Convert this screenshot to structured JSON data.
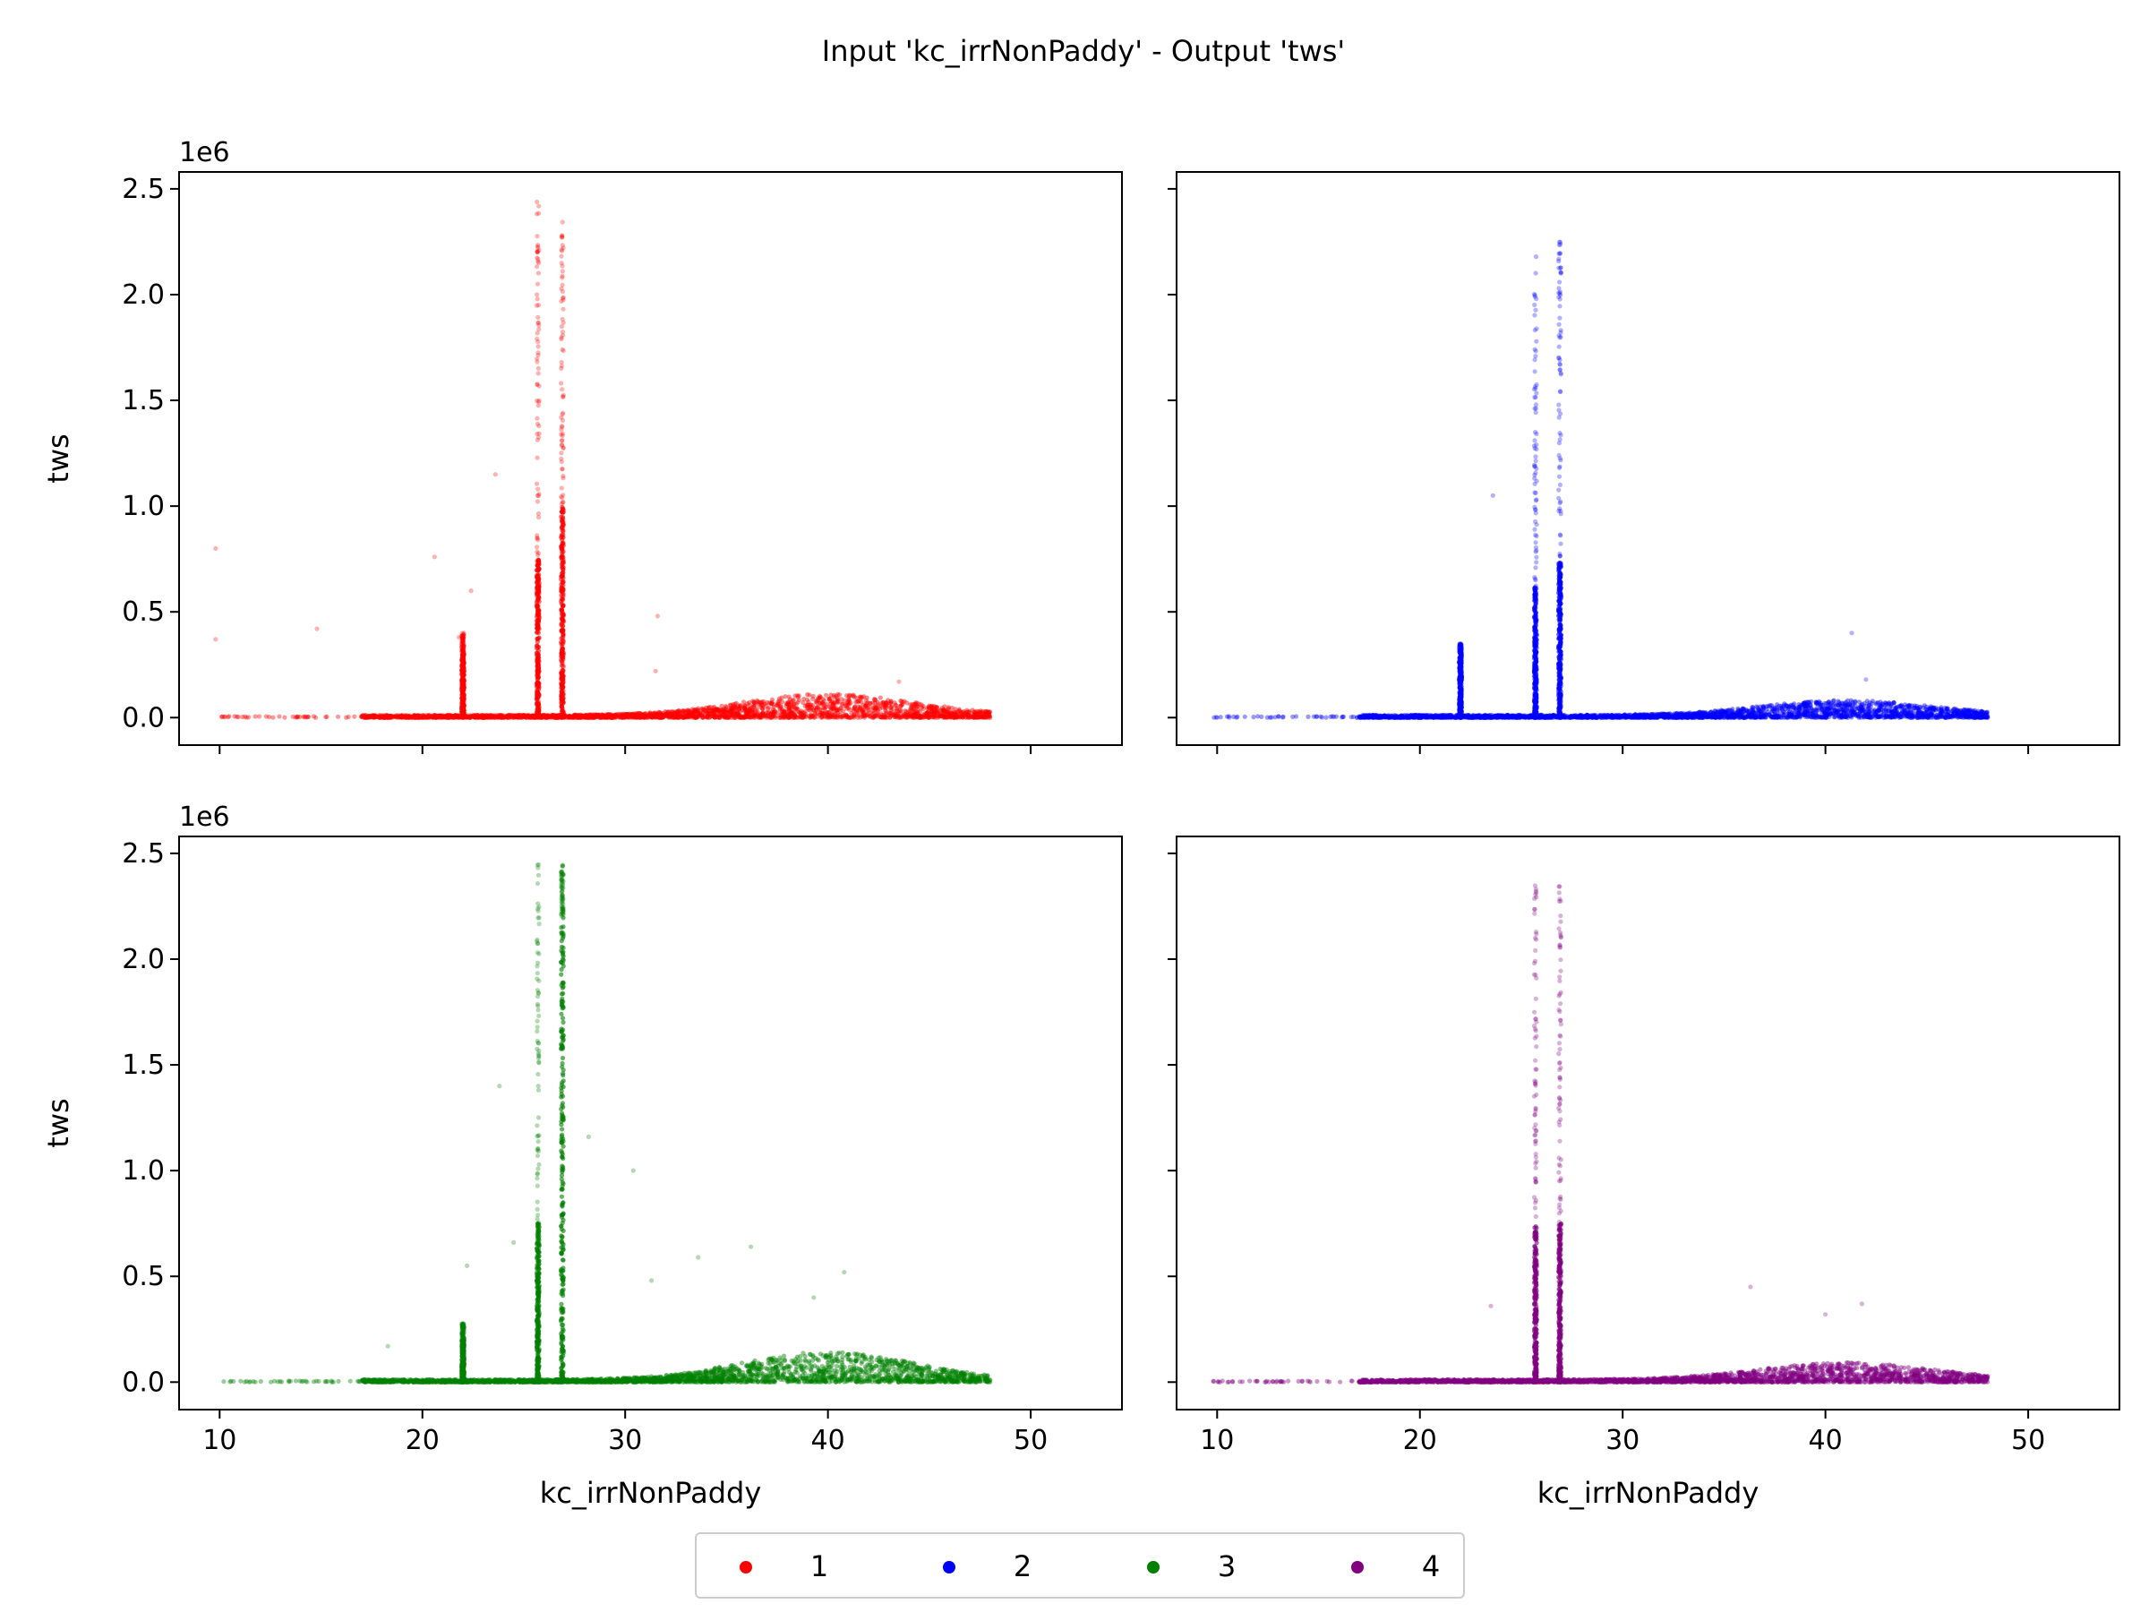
{
  "figure": {
    "title": "Input 'kc_irrNonPaddy' - Output 'tws'",
    "offset_label": "1e6"
  },
  "legend": {
    "placement": "bottom-center",
    "entries": [
      {
        "label": "1",
        "color": "#ff0000"
      },
      {
        "label": "2",
        "color": "#0000ff"
      },
      {
        "label": "3",
        "color": "#008000"
      },
      {
        "label": "4",
        "color": "#800080"
      }
    ]
  },
  "chart_data": [
    {
      "type": "scatter",
      "panel": "top-left",
      "series": [
        {
          "name": "1",
          "color": "#ff0000"
        }
      ],
      "xlabel": "",
      "ylabel": "tws",
      "xlim": [
        8,
        54.5
      ],
      "ylim": [
        -0.13,
        2.58
      ],
      "xticks": [
        10,
        20,
        30,
        40,
        50
      ],
      "xtick_labels": [
        "",
        "",
        "",
        "",
        ""
      ],
      "yticks": [
        0.0,
        0.5,
        1.0,
        1.5,
        2.0,
        2.5
      ],
      "ytick_labels": [
        "0.0",
        "0.5",
        "1.0",
        "1.5",
        "2.0",
        "2.5"
      ],
      "y_multiplier": "1e6",
      "baseline": {
        "x_range": [
          17,
          48
        ],
        "hump_peak_x": 40,
        "hump_height": 0.1
      },
      "spikes": [
        {
          "x": 25.7,
          "y_max": 2.45,
          "dense_max": 0.75
        },
        {
          "x": 26.9,
          "y_max": 2.35,
          "dense_max": 1.0
        },
        {
          "x": 22.0,
          "y_max": 0.4,
          "dense_max": 0.3
        }
      ],
      "outliers": [
        [
          9.8,
          0.8
        ],
        [
          9.8,
          0.37
        ],
        [
          14.8,
          0.42
        ],
        [
          20.6,
          0.76
        ],
        [
          22.4,
          0.6
        ],
        [
          23.6,
          1.15
        ],
        [
          31.6,
          0.48
        ],
        [
          31.5,
          0.22
        ],
        [
          43.5,
          0.17
        ],
        [
          21.8,
          0.38
        ]
      ]
    },
    {
      "type": "scatter",
      "panel": "top-right",
      "series": [
        {
          "name": "2",
          "color": "#0000ff"
        }
      ],
      "xlabel": "",
      "ylabel": "",
      "xlim": [
        8,
        54.5
      ],
      "ylim": [
        -0.13,
        2.58
      ],
      "xticks": [
        10,
        20,
        30,
        40,
        50
      ],
      "xtick_labels": [
        "",
        "",
        "",
        "",
        ""
      ],
      "yticks": [
        0.0,
        0.5,
        1.0,
        1.5,
        2.0,
        2.5
      ],
      "ytick_labels": [
        "",
        "",
        "",
        "",
        "",
        ""
      ],
      "baseline": {
        "x_range": [
          17,
          48
        ],
        "hump_peak_x": 41,
        "hump_height": 0.07
      },
      "spikes": [
        {
          "x": 25.7,
          "y_max": 2.18,
          "dense_max": 0.62
        },
        {
          "x": 26.9,
          "y_max": 2.25,
          "dense_max": 0.77
        },
        {
          "x": 22.0,
          "y_max": 0.35,
          "dense_max": 0.3
        }
      ],
      "outliers": [
        [
          23.6,
          1.05
        ],
        [
          41.3,
          0.4
        ],
        [
          42.0,
          0.18
        ],
        [
          10.0,
          0.0
        ],
        [
          10.6,
          0.0
        ]
      ]
    },
    {
      "type": "scatter",
      "panel": "bottom-left",
      "series": [
        {
          "name": "3",
          "color": "#008000"
        }
      ],
      "xlabel": "kc_irrNonPaddy",
      "ylabel": "tws",
      "xlim": [
        8,
        54.5
      ],
      "ylim": [
        -0.13,
        2.58
      ],
      "xticks": [
        10,
        20,
        30,
        40,
        50
      ],
      "xtick_labels": [
        "10",
        "20",
        "30",
        "40",
        "50"
      ],
      "yticks": [
        0.0,
        0.5,
        1.0,
        1.5,
        2.0,
        2.5
      ],
      "ytick_labels": [
        "0.0",
        "0.5",
        "1.0",
        "1.5",
        "2.0",
        "2.5"
      ],
      "y_multiplier": "1e6",
      "baseline": {
        "x_range": [
          17,
          48
        ],
        "hump_peak_x": 40,
        "hump_height": 0.13
      },
      "spikes": [
        {
          "x": 25.7,
          "y_max": 2.45,
          "dense_max": 0.75
        },
        {
          "x": 26.9,
          "y_max": 2.45,
          "dense_max": 2.2
        },
        {
          "x": 22.0,
          "y_max": 0.28,
          "dense_max": 0.2
        }
      ],
      "outliers": [
        [
          23.8,
          1.4
        ],
        [
          22.2,
          0.55
        ],
        [
          24.5,
          0.66
        ],
        [
          28.2,
          1.16
        ],
        [
          30.4,
          1.0
        ],
        [
          31.3,
          0.48
        ],
        [
          33.6,
          0.59
        ],
        [
          36.2,
          0.64
        ],
        [
          39.3,
          0.4
        ],
        [
          40.8,
          0.52
        ],
        [
          18.3,
          0.17
        ]
      ]
    },
    {
      "type": "scatter",
      "panel": "bottom-right",
      "series": [
        {
          "name": "4",
          "color": "#800080"
        }
      ],
      "xlabel": "kc_irrNonPaddy",
      "ylabel": "",
      "xlim": [
        8,
        54.5
      ],
      "ylim": [
        -0.13,
        2.58
      ],
      "xticks": [
        10,
        20,
        30,
        40,
        50
      ],
      "xtick_labels": [
        "10",
        "20",
        "30",
        "40",
        "50"
      ],
      "yticks": [
        0.0,
        0.5,
        1.0,
        1.5,
        2.0,
        2.5
      ],
      "ytick_labels": [
        "",
        "",
        "",
        "",
        "",
        ""
      ],
      "baseline": {
        "x_range": [
          17,
          48
        ],
        "hump_peak_x": 41,
        "hump_height": 0.08
      },
      "spikes": [
        {
          "x": 25.7,
          "y_max": 2.37,
          "dense_max": 0.75
        },
        {
          "x": 26.9,
          "y_max": 2.4,
          "dense_max": 0.75
        }
      ],
      "outliers": [
        [
          23.5,
          0.36
        ],
        [
          36.3,
          0.45
        ],
        [
          40.0,
          0.32
        ],
        [
          41.8,
          0.37
        ],
        [
          12.4,
          0.0
        ],
        [
          14.6,
          0.0
        ]
      ]
    }
  ]
}
